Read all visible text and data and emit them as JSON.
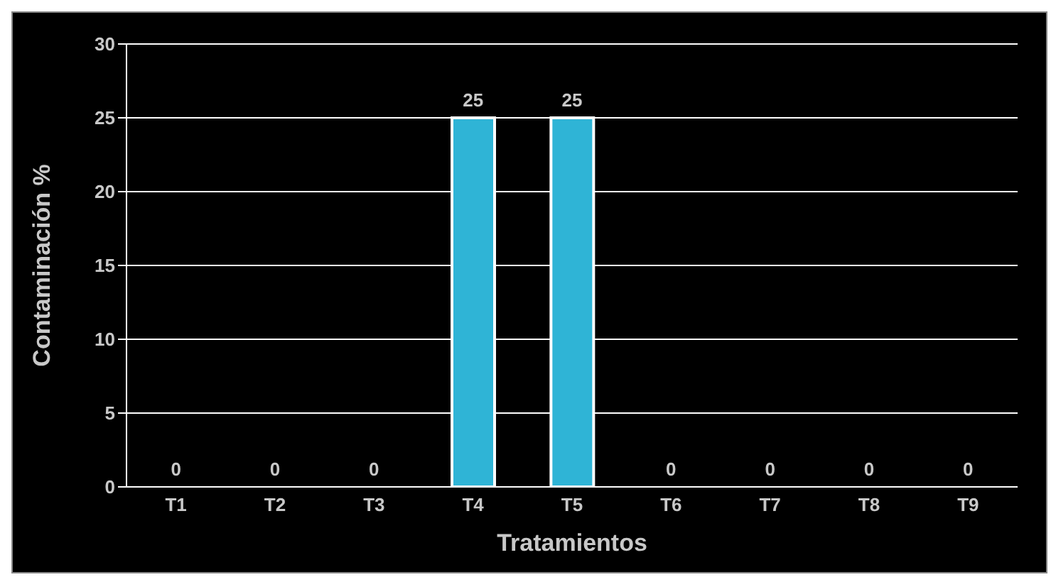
{
  "chart_data": {
    "type": "bar",
    "xlabel": "Tratamientos",
    "ylabel": "Contaminación %",
    "categories": [
      "T1",
      "T2",
      "T3",
      "T4",
      "T5",
      "T6",
      "T7",
      "T8",
      "T9"
    ],
    "values": [
      0,
      0,
      0,
      25,
      25,
      0,
      0,
      0,
      0
    ],
    "color": "#2fb4d6",
    "ylim": [
      0,
      30
    ],
    "yticks": [
      0,
      5,
      10,
      15,
      20,
      25,
      30
    ],
    "grid": "y",
    "data_labels": true
  }
}
